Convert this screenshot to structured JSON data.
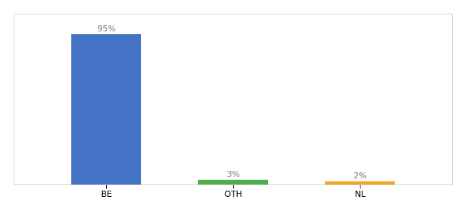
{
  "chart_data": {
    "type": "bar",
    "categories": [
      "BE",
      "OTH",
      "NL"
    ],
    "values": [
      95,
      3,
      2
    ],
    "value_labels": [
      "95%",
      "3%",
      "2%"
    ],
    "colors": [
      "#4472c4",
      "#4caf50",
      "#f5a623"
    ],
    "ylim": [
      0,
      108
    ],
    "data_labels": true,
    "tick_labels": "x",
    "grid": false
  }
}
